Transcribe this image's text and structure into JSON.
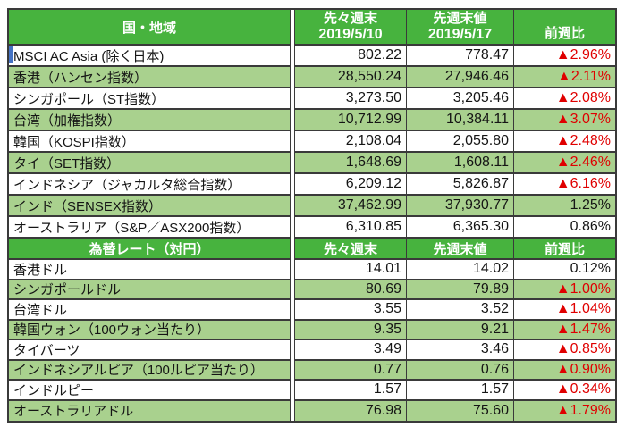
{
  "colors": {
    "header_green": "#47B33E",
    "row_green": "#A9D18E",
    "negative_red": "#E00000",
    "active_cell_blue": "#4472C4",
    "border": "#3a3a3a"
  },
  "table": {
    "sections": [
      {
        "header": {
          "title": "国・地域",
          "col2_label": "先々週末",
          "col2_date": "2019/5/10",
          "col3_label": "先週末値",
          "col3_date": "2019/5/17",
          "col4_label": "前週比"
        },
        "rows": [
          {
            "name": "MSCI AC Asia (除く日本)",
            "prev": "802.22",
            "last": "778.47",
            "change": "▲2.96%"
          },
          {
            "name": "香港（ハンセン指数）",
            "prev": "28,550.24",
            "last": "27,946.46",
            "change": "▲2.11%"
          },
          {
            "name": "シンガポール（ST指数）",
            "prev": "3,273.50",
            "last": "3,205.46",
            "change": "▲2.08%"
          },
          {
            "name": "台湾（加権指数）",
            "prev": "10,712.99",
            "last": "10,384.11",
            "change": "▲3.07%"
          },
          {
            "name": "韓国（KOSPI指数）",
            "prev": "2,108.04",
            "last": "2,055.80",
            "change": "▲2.48%"
          },
          {
            "name": "タイ（SET指数）",
            "prev": "1,648.69",
            "last": "1,608.11",
            "change": "▲2.46%"
          },
          {
            "name": "インドネシア（ジャカルタ総合指数）",
            "prev": "6,209.12",
            "last": "5,826.87",
            "change": "▲6.16%"
          },
          {
            "name": "インド（SENSEX指数）",
            "prev": "37,462.99",
            "last": "37,930.77",
            "change": "1.25%"
          },
          {
            "name": "オーストラリア（S&P／ASX200指数）",
            "prev": "6,310.85",
            "last": "6,365.30",
            "change": "0.86%"
          }
        ]
      },
      {
        "header": {
          "title": "為替レート（対円）",
          "col2_label": "先々週末",
          "col3_label": "先週末値",
          "col4_label": "前週比"
        },
        "rows": [
          {
            "name": "香港ドル",
            "prev": "14.01",
            "last": "14.02",
            "change": "0.12%"
          },
          {
            "name": "シンガポールドル",
            "prev": "80.69",
            "last": "79.89",
            "change": "▲1.00%"
          },
          {
            "name": "台湾ドル",
            "prev": "3.55",
            "last": "3.52",
            "change": "▲1.04%"
          },
          {
            "name": "韓国ウォン（100ウォン当たり）",
            "prev": "9.35",
            "last": "9.21",
            "change": "▲1.47%"
          },
          {
            "name": "タイバーツ",
            "prev": "3.49",
            "last": "3.46",
            "change": "▲0.85%"
          },
          {
            "name": "インドネシアルピア（100ルピア当たり）",
            "prev": "0.77",
            "last": "0.76",
            "change": "▲0.90%"
          },
          {
            "name": "インドルピー",
            "prev": "1.57",
            "last": "1.57",
            "change": "▲0.34%"
          },
          {
            "name": "オーストラリアドル",
            "prev": "76.98",
            "last": "75.60",
            "change": "▲1.79%"
          }
        ]
      }
    ]
  }
}
